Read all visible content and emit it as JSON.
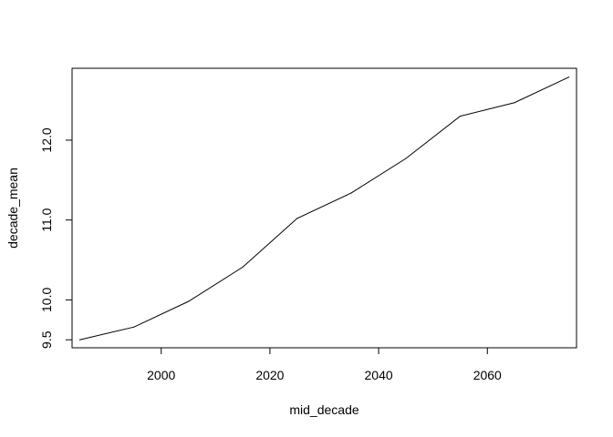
{
  "chart_data": {
    "type": "line",
    "title": "",
    "xlabel": "mid_decade",
    "ylabel": "decade_mean",
    "x": [
      1985,
      1995,
      2005,
      2015,
      2025,
      2035,
      2045,
      2055,
      2065,
      2075
    ],
    "series": [
      {
        "values": [
          9.5,
          9.66,
          9.98,
          10.41,
          11.02,
          11.34,
          11.77,
          12.3,
          12.47,
          12.79
        ]
      }
    ],
    "xlim": [
      1983.6,
      2076.4
    ],
    "ylim": [
      9.4,
      12.9
    ],
    "xticks": [
      2000,
      2020,
      2040,
      2060
    ],
    "yticks": [
      9.5,
      10.0,
      11.0,
      12.0
    ],
    "xtick_labels": [
      "2000",
      "2020",
      "2040",
      "2060"
    ],
    "ytick_labels": [
      "9.5",
      "10.0",
      "11.0",
      "12.0"
    ],
    "grid": false,
    "legend": "none",
    "line_color": "#000000"
  }
}
